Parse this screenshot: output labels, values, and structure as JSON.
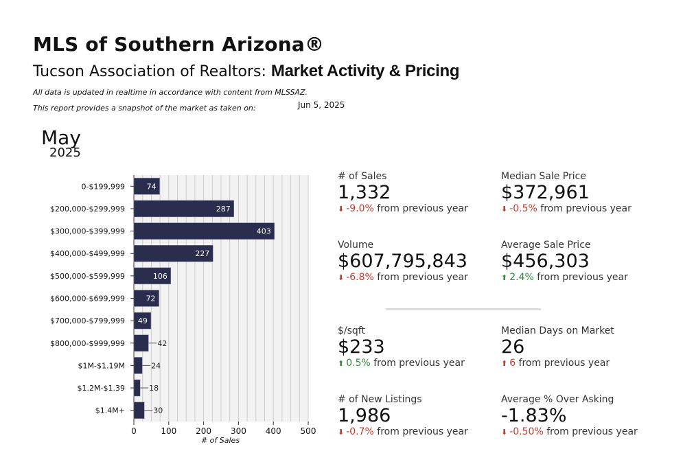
{
  "header": {
    "title": "MLS of Southern Arizona®",
    "subtitle_prefix": "Tucson Association of Realtors: ",
    "subtitle_bold": "Market Activity & Pricing",
    "note1": "All data is updated in realtime in accordance with content from MLSSAZ.",
    "note2": "This report provides a snapshot of the market as taken on:",
    "snapshot_date": "Jun 5, 2025"
  },
  "period": {
    "month": "May",
    "year": "2025"
  },
  "kpis": {
    "sales": {
      "label": "# of Sales",
      "value": "1,332",
      "change": "-9.0%",
      "suffix": "from previous year",
      "direction": "down"
    },
    "median_price": {
      "label": "Median Sale Price",
      "value": "$372,961",
      "change": "-0.5%",
      "suffix": "from previous year",
      "direction": "down"
    },
    "volume": {
      "label": "Volume",
      "value": "$607,795,843",
      "change": "-6.8%",
      "suffix": "from previous year",
      "direction": "down"
    },
    "avg_price": {
      "label": "Average Sale Price",
      "value": "$456,303",
      "change": "2.4%",
      "suffix": "from previous year",
      "direction": "up"
    },
    "sqft": {
      "label": "$/sqft",
      "value": "$233",
      "change": "0.5%",
      "suffix": "from previous year",
      "direction": "up"
    },
    "dom": {
      "label": "Median Days on Market",
      "value": "26",
      "change": "6",
      "suffix": "from previous year",
      "direction": "up-red"
    },
    "new_listings": {
      "label": "# of New Listings",
      "value": "1,986",
      "change": "-0.7%",
      "suffix": "from previous year",
      "direction": "down"
    },
    "over_asking": {
      "label": "Average % Over Asking",
      "value": "-1.83%",
      "change": "-0.50%",
      "suffix": "from previous year",
      "direction": "down"
    }
  },
  "colors": {
    "bar": "#2b2d4f",
    "down": "#c0392b",
    "up": "#2e8b3a",
    "grid": "#cccccc",
    "plot_bg": "#f2f2f2"
  },
  "chart_data": {
    "type": "bar",
    "orientation": "horizontal",
    "categories": [
      "0-$199,999",
      "$200,000-$299,999",
      "$300,000-$399,999",
      "$400,000-$499,999",
      "$500,000-$599,999",
      "$600,000-$699,999",
      "$700,000-$799,999",
      "$800,000-$999,999",
      "$1M-$1.19M",
      "$1.2M-$1.39",
      "$1.4M+"
    ],
    "values": [
      74,
      287,
      403,
      227,
      106,
      72,
      49,
      42,
      24,
      18,
      30
    ],
    "xlabel": "# of Sales",
    "xlim": [
      0,
      500
    ],
    "xticks": [
      0,
      100,
      200,
      300,
      400,
      500
    ],
    "grid": true
  }
}
